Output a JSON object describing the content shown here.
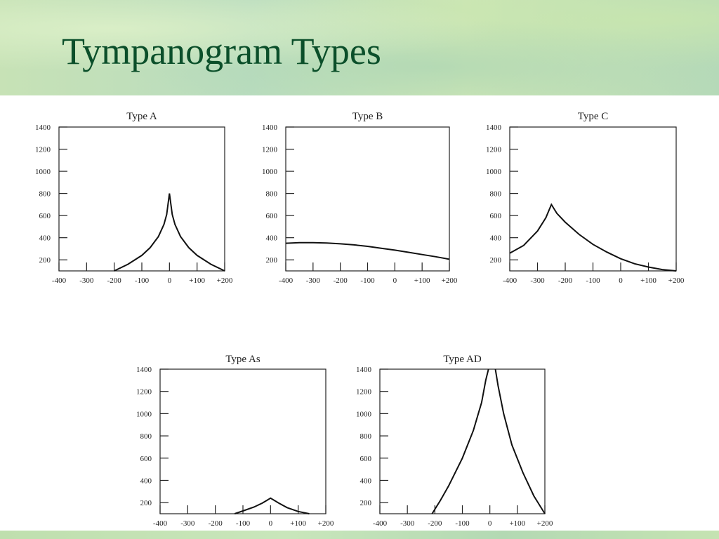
{
  "slide": {
    "title": "Tympanogram Types"
  },
  "chart_data": [
    {
      "type": "line",
      "title": "Type A",
      "xlim": [
        -400,
        200
      ],
      "ylim": [
        100,
        1400
      ],
      "x_ticks": [
        "-400",
        "-300",
        "-200",
        "-100",
        "0",
        "+100",
        "+200"
      ],
      "y_ticks": [
        "1400",
        "1200",
        "1000",
        "800",
        "600",
        "400",
        "200"
      ],
      "series": [
        {
          "x": [
            -200,
            -150,
            -100,
            -70,
            -40,
            -20,
            -10,
            0,
            10,
            20,
            40,
            70,
            100,
            150,
            200
          ],
          "y": [
            100,
            160,
            240,
            310,
            410,
            520,
            610,
            800,
            610,
            520,
            410,
            310,
            240,
            160,
            100
          ]
        }
      ]
    },
    {
      "type": "line",
      "title": "Type B",
      "xlim": [
        -400,
        200
      ],
      "ylim": [
        100,
        1400
      ],
      "x_ticks": [
        "-400",
        "-300",
        "-200",
        "-100",
        "0",
        "+100",
        "+200"
      ],
      "y_ticks": [
        "1400",
        "1200",
        "1000",
        "800",
        "600",
        "400",
        "200"
      ],
      "series": [
        {
          "x": [
            -400,
            -350,
            -300,
            -250,
            -200,
            -150,
            -100,
            -50,
            0,
            50,
            100,
            150,
            200
          ],
          "y": [
            350,
            355,
            355,
            352,
            345,
            335,
            322,
            305,
            288,
            268,
            248,
            228,
            205
          ]
        }
      ]
    },
    {
      "type": "line",
      "title": "Type C",
      "xlim": [
        -400,
        200
      ],
      "ylim": [
        100,
        1400
      ],
      "x_ticks": [
        "-400",
        "-300",
        "-200",
        "-100",
        "0",
        "+100",
        "+200"
      ],
      "y_ticks": [
        "1400",
        "1200",
        "1000",
        "800",
        "600",
        "400",
        "200"
      ],
      "series": [
        {
          "x": [
            -400,
            -350,
            -300,
            -270,
            -250,
            -230,
            -200,
            -150,
            -100,
            -50,
            0,
            50,
            100,
            150,
            200
          ],
          "y": [
            260,
            330,
            460,
            580,
            700,
            620,
            540,
            430,
            340,
            270,
            210,
            165,
            135,
            112,
            100
          ]
        }
      ]
    },
    {
      "type": "line",
      "title": "Type As",
      "xlim": [
        -400,
        200
      ],
      "ylim": [
        100,
        1400
      ],
      "x_ticks": [
        "-400",
        "-300",
        "-200",
        "-100",
        "0",
        "+100",
        "+200"
      ],
      "y_ticks": [
        "1400",
        "1200",
        "1000",
        "800",
        "600",
        "400",
        "200"
      ],
      "series": [
        {
          "x": [
            -130,
            -100,
            -60,
            -30,
            0,
            30,
            60,
            100,
            140
          ],
          "y": [
            100,
            125,
            160,
            195,
            240,
            195,
            155,
            120,
            100
          ]
        }
      ]
    },
    {
      "type": "line",
      "title": "Type AD",
      "xlim": [
        -400,
        200
      ],
      "ylim": [
        100,
        1400
      ],
      "x_ticks": [
        "-400",
        "-300",
        "-200",
        "-100",
        "0",
        "+100",
        "+200"
      ],
      "y_ticks": [
        "1400",
        "1200",
        "1000",
        "800",
        "600",
        "400",
        "200"
      ],
      "series": [
        {
          "x": [
            -210,
            -180,
            -150,
            -100,
            -60,
            -30,
            -15,
            -5
          ],
          "y": [
            100,
            220,
            350,
            600,
            850,
            1100,
            1300,
            1400
          ]
        },
        {
          "x": [
            20,
            30,
            50,
            80,
            120,
            160,
            200
          ],
          "y": [
            1400,
            1250,
            1000,
            720,
            470,
            260,
            100
          ]
        }
      ]
    }
  ]
}
